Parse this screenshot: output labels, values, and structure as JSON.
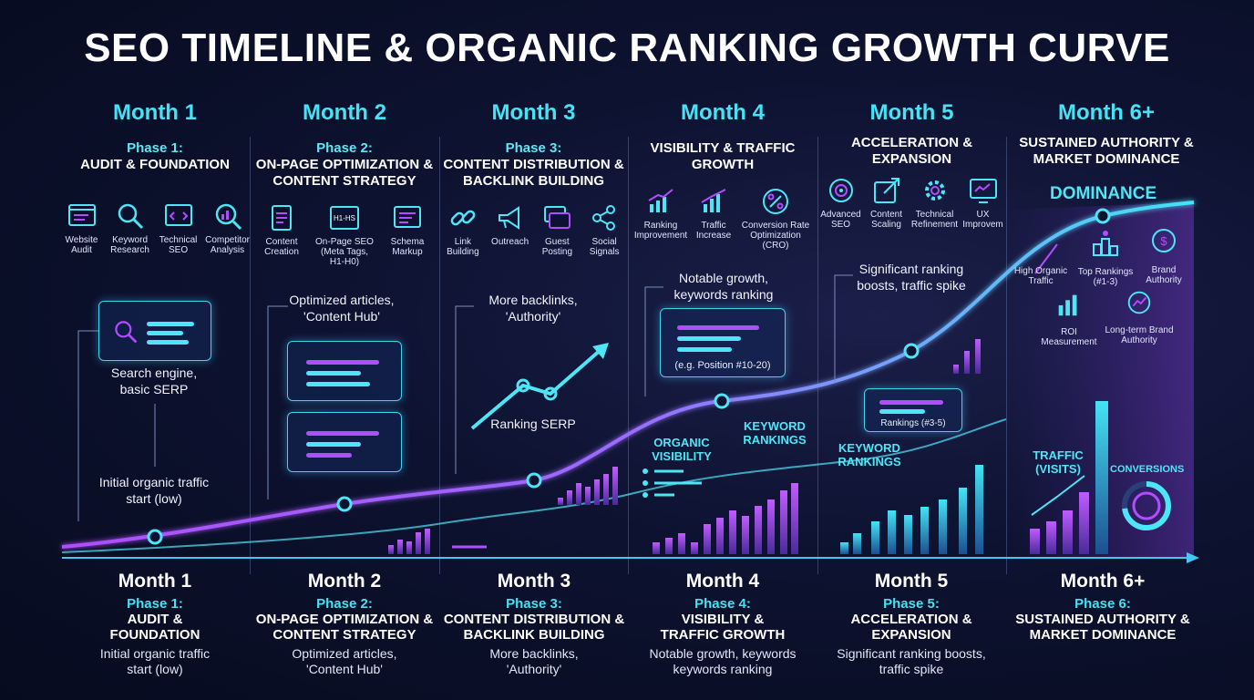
{
  "title": "SEO TIMELINE & ORGANIC RANKING GROWTH CURVE",
  "colors": {
    "accent_cyan": "#45e3f5",
    "accent_purple": "#b04dff",
    "background": "#0d1230"
  },
  "columns": [
    {
      "month": "Month 1",
      "phase_label": "Phase 1:",
      "phase_title": "AUDIT & FOUNDATION",
      "icons": [
        {
          "icon": "browser-audit-icon",
          "label": "Website Audit"
        },
        {
          "icon": "magnifier-icon",
          "label": "Keyword Research"
        },
        {
          "icon": "code-window-icon",
          "label": "Technical SEO"
        },
        {
          "icon": "chart-search-icon",
          "label": "Competitor Analysis"
        }
      ],
      "note": "Search engine, basic SERP",
      "note2": "Initial organic traffic start (low)"
    },
    {
      "month": "Month 2",
      "phase_label": "Phase 2:",
      "phase_title": "ON-PAGE OPTIMIZATION & CONTENT STRATEGY",
      "icons": [
        {
          "icon": "document-edit-icon",
          "label": "Content Creation"
        },
        {
          "icon": "meta-tags-icon",
          "label": "On-Page SEO (Meta Tags, H1-H0)"
        },
        {
          "icon": "schema-window-icon",
          "label": "Schema Markup"
        }
      ],
      "icon_text": "H1-HS",
      "note": "Optimized articles, 'Content Hub'"
    },
    {
      "month": "Month 3",
      "phase_label": "Phase 3:",
      "phase_title": "CONTENT DISTRIBUTION & BACKLINK BUILDING",
      "icons": [
        {
          "icon": "link-icon",
          "label": "Link Building"
        },
        {
          "icon": "megaphone-icon",
          "label": "Outreach"
        },
        {
          "icon": "chat-post-icon",
          "label": "Guest Posting"
        },
        {
          "icon": "share-icon",
          "label": "Social Signals"
        }
      ],
      "note": "More backlinks, 'Authority'",
      "note2": "Ranking SERP"
    },
    {
      "month": "Month 4",
      "phase_label": "",
      "phase_title": "VISIBILITY & TRAFFIC GROWTH",
      "icons": [
        {
          "icon": "bar-growth-icon",
          "label": "Ranking Improvement"
        },
        {
          "icon": "traffic-chart-icon",
          "label": "Traffic Increase"
        },
        {
          "icon": "percent-icon",
          "label": "Conversion Rate Optimization (CRO)"
        }
      ],
      "note": "Notable growth, keywords ranking",
      "panel_caption": "(e.g. Position #10-20)",
      "label_a": "ORGANIC VISIBILITY",
      "label_b": "KEYWORD RANKINGS"
    },
    {
      "month": "Month 5",
      "phase_label": "",
      "phase_title": "ACCELERATION & EXPANSION",
      "icons": [
        {
          "icon": "target-chart-icon",
          "label": "Advanced SEO"
        },
        {
          "icon": "scale-arrow-icon",
          "label": "Content Scaling"
        },
        {
          "icon": "gear-icon",
          "label": "Technical Refinement"
        },
        {
          "icon": "ux-monitor-icon",
          "label": "UX Improvem"
        }
      ],
      "note": "Significant ranking boosts, traffic spike",
      "panel_caption": "Rankings (#3-5)",
      "label_a": "KEYWORD RANKINGS"
    },
    {
      "month": "Month 6+",
      "phase_label": "",
      "phase_title": "SUSTAINED AUTHORITY & MARKET DOMINANCE",
      "dominance": "DOMINANCE",
      "icons": [
        {
          "icon": "trend-arrow-icon",
          "label": "High Organic Traffic"
        },
        {
          "icon": "podium-icon",
          "label": "Top Rankings (#1-3)"
        },
        {
          "icon": "brand-badge-icon",
          "label": "Brand Authority"
        },
        {
          "icon": "roi-icon",
          "label": "ROI Measurement"
        },
        {
          "icon": "long-term-icon",
          "label": "Long-term Brand Authority"
        }
      ],
      "label_a": "TRAFFIC (VISITS)",
      "label_b": "CONVERSIONS"
    }
  ],
  "bottom": [
    {
      "month": "Month 1",
      "phase": "Phase 1:",
      "title": "AUDIT & FOUNDATION",
      "desc": "Initial organic traffic start (low)"
    },
    {
      "month": "Month 2",
      "phase": "Phase 2:",
      "title": "ON-PAGE OPTIMIZATION & CONTENT STRATEGY",
      "desc": "Optimized articles, 'Content Hub'"
    },
    {
      "month": "Month 3",
      "phase": "Phase 3:",
      "title": "CONTENT DISTRIBUTION & BACKLINK BUILDING",
      "desc": "More backlinks, 'Authority'"
    },
    {
      "month": "Month 4",
      "phase": "Phase 4:",
      "title": "VISIBILITY & TRAFFIC GROWTH",
      "desc": "Notable growth, keywords keywords ranking"
    },
    {
      "month": "Month 5",
      "phase": "Phase 5:",
      "title": "ACCELERATION & EXPANSION",
      "desc": "Significant ranking boosts, traffic spike"
    },
    {
      "month": "Month 6+",
      "phase": "Phase 6:",
      "title": "SUSTAINED AUTHORITY & MARKET DOMINANCE",
      "desc": ""
    }
  ]
}
